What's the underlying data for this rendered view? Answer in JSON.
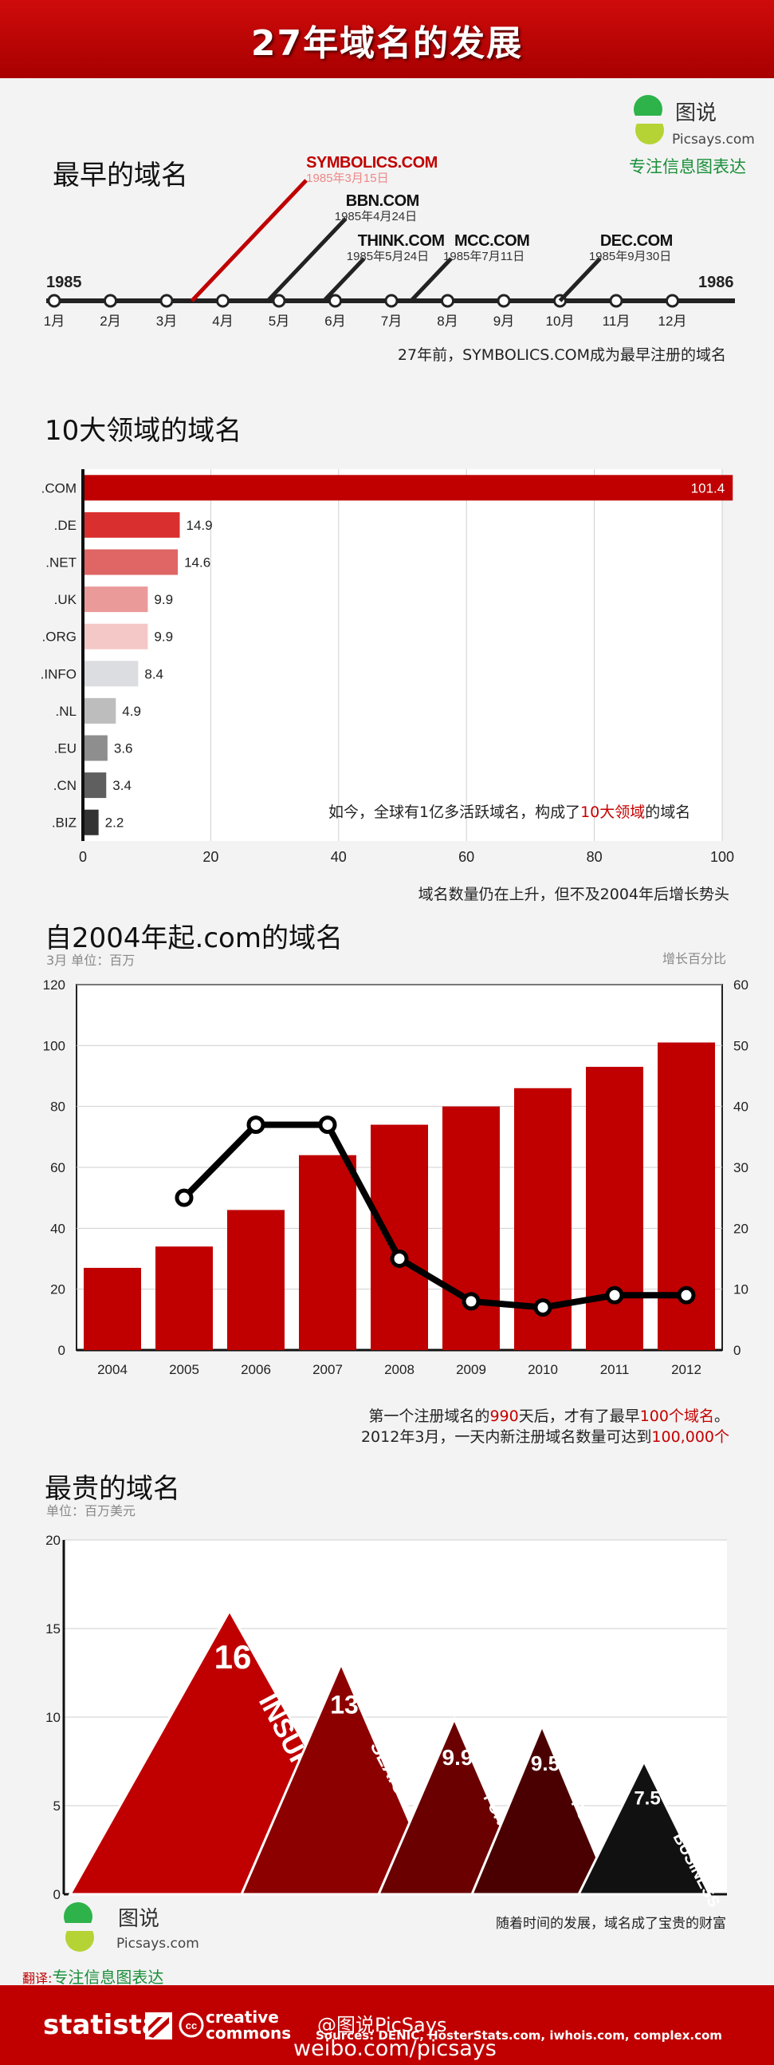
{
  "header": {
    "title": "27年域名的发展"
  },
  "logo": {
    "name": "图说",
    "site": "Picsays.com",
    "tagline": "专注信息图表达"
  },
  "timeline": {
    "title": "最早的域名",
    "year_start": "1985",
    "year_end": "1986",
    "months": [
      "1月",
      "2月",
      "3月",
      "4月",
      "5月",
      "6月",
      "7月",
      "8月",
      "9月",
      "10月",
      "11月",
      "12月"
    ],
    "events": [
      {
        "name": "SYMBOLICS.COM",
        "date": "1985年3月15日"
      },
      {
        "name": "BBN.COM",
        "date": "1985年4月24日"
      },
      {
        "name": "THINK.COM",
        "date": "1985年5月24日"
      },
      {
        "name": "MCC.COM",
        "date": "1985年7月11日"
      },
      {
        "name": "DEC.COM",
        "date": "1985年9月30日"
      }
    ],
    "note": "27年前，SYMBOLICS.COM成为最早注册的域名",
    "colors": {
      "highlight": "#c00000",
      "line": "#222222"
    }
  },
  "top10": {
    "title": "10大领域的域名",
    "note_pre": "如今，全球有1亿多活跃域名，构成了",
    "note_red": "10大领域",
    "note_post": "的域名",
    "footnote": "域名数量仍在上升，但不及2004年后增长势头"
  },
  "com_growth": {
    "title": "自2004年起.com的域名",
    "left_label": "3月 单位：百万",
    "right_label": "增长百分比",
    "note1_a": "第一个注册域名的",
    "note1_b": "990",
    "note1_c": "天后，才有了最早",
    "note1_d": "100个域名",
    "note1_e": "。",
    "note2_a": "2012年3月，一天内新注册域名数量可达到",
    "note2_b": "100,000个"
  },
  "expensive": {
    "title": "最贵的域名",
    "unit": "单位：百万美元",
    "note": "随着时间的发展，域名成了宝贵的财富"
  },
  "credits": {
    "translate_label": "翻译:",
    "translate_text": "专注信息图表达",
    "statista": "statista",
    "cc_line1": "creative",
    "cc_line2": "commons",
    "weibo_handle": "@图说PicSays",
    "sources": "Sources: DENIC, HosterStats.com, iwhois.com, complex.com",
    "weibo_url": "weibo.com/picsays"
  },
  "chart_data": [
    {
      "type": "bar",
      "title": "10大领域的域名",
      "orientation": "horizontal",
      "categories": [
        ".COM",
        ".DE",
        ".NET",
        ".UK",
        ".ORG",
        ".INFO",
        ".NL",
        ".EU",
        ".CN",
        ".BIZ"
      ],
      "values": [
        101.4,
        14.9,
        14.6,
        9.9,
        9.9,
        8.4,
        4.9,
        3.6,
        3.4,
        2.2
      ],
      "xlim": [
        0,
        100
      ],
      "xticks": [
        "0",
        "20",
        "40",
        "60",
        "80",
        "100"
      ],
      "grid": true,
      "colors": [
        "#c00000",
        "#d9302f",
        "#e06565",
        "#eb9a9a",
        "#f5c8c8",
        "#dcdde1",
        "#bdbdbd",
        "#8e8e8e",
        "#5f5f5f",
        "#333333"
      ]
    },
    {
      "type": "bar",
      "title": "自2004年起.com的域名",
      "categories": [
        "2004",
        "2005",
        "2006",
        "2007",
        "2008",
        "2009",
        "2010",
        "2011",
        "2012"
      ],
      "series": [
        {
          "values": [
            27,
            34,
            46,
            64,
            74,
            80,
            86,
            93,
            101
          ]
        },
        {
          "type": "line",
          "axis": "right",
          "values": [
            null,
            25,
            37,
            37,
            15,
            8,
            7,
            9,
            9
          ]
        }
      ],
      "ylim": [
        0,
        120
      ],
      "yticks": [
        "0",
        "20",
        "40",
        "60",
        "80",
        "100",
        "120"
      ],
      "y2lim": [
        0,
        60
      ],
      "y2ticks": [
        "0",
        "10",
        "20",
        "30",
        "40",
        "50",
        "60"
      ],
      "grid": true,
      "colors": {
        "bar": "#c00000",
        "line": "#000000"
      }
    },
    {
      "type": "bar",
      "title": "最贵的域名",
      "shape": "triangle",
      "categories": [
        "INSURE.COM",
        "SEX.COM",
        "FUND.COM",
        "PORN.COM",
        "BUSINESS.COM"
      ],
      "values": [
        16,
        13,
        9.9,
        9.5,
        7.5
      ],
      "value_labels": [
        "16",
        "13",
        "9.9",
        "9.5",
        "7.5"
      ],
      "ylim": [
        0,
        20
      ],
      "yticks": [
        "0",
        "5",
        "10",
        "15",
        "20"
      ],
      "grid": true,
      "colors": [
        "#c00000",
        "#8c0000",
        "#6a0000",
        "#4a0000",
        "#111111"
      ]
    }
  ]
}
